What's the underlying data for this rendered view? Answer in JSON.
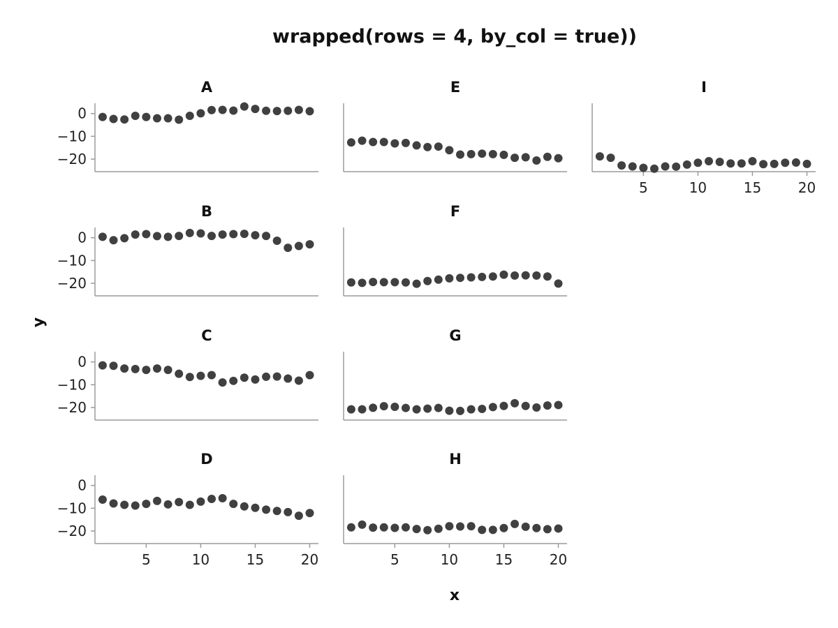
{
  "chart_data": {
    "type": "scatter",
    "title": "wrapped(rows = 4, by_col = true))",
    "xlabel": "x",
    "ylabel": "y",
    "layout": {
      "rows": 4,
      "by_col": true
    },
    "xlim": [
      0.3,
      20.8
    ],
    "ylim": [
      -25.5,
      4.5
    ],
    "xticks": [
      5,
      10,
      15,
      20
    ],
    "yticks": [
      0,
      -10,
      -20
    ],
    "grid": false,
    "marker_color": "#404040",
    "facets": [
      {
        "label": "A",
        "x": [
          1,
          2,
          3,
          4,
          5,
          6,
          7,
          8,
          9,
          10,
          11,
          12,
          13,
          14,
          15,
          16,
          17,
          18,
          19,
          20
        ],
        "y": [
          -1.5,
          -2.4,
          -2.6,
          -1.0,
          -1.5,
          -2.1,
          -2.1,
          -2.7,
          -1.0,
          0.1,
          1.5,
          1.6,
          1.3,
          3.1,
          2.0,
          1.2,
          1.1,
          1.2,
          1.6,
          1.0
        ]
      },
      {
        "label": "B",
        "x": [
          1,
          2,
          3,
          4,
          5,
          6,
          7,
          8,
          9,
          10,
          11,
          12,
          13,
          14,
          15,
          16,
          17,
          18,
          19,
          20
        ],
        "y": [
          0.4,
          -1.1,
          -0.2,
          1.4,
          1.6,
          0.7,
          0.4,
          0.8,
          2.1,
          1.9,
          0.8,
          1.4,
          1.6,
          1.7,
          1.1,
          0.8,
          -1.3,
          -4.4,
          -3.6,
          -2.9
        ]
      },
      {
        "label": "C",
        "x": [
          1,
          2,
          3,
          4,
          5,
          6,
          7,
          8,
          9,
          10,
          11,
          12,
          13,
          14,
          15,
          16,
          17,
          18,
          19,
          20
        ],
        "y": [
          -1.5,
          -1.7,
          -2.9,
          -3.1,
          -3.5,
          -2.9,
          -3.5,
          -5.2,
          -6.6,
          -6.1,
          -5.8,
          -9.0,
          -8.3,
          -6.9,
          -7.7,
          -6.5,
          -6.4,
          -7.3,
          -8.2,
          -5.8
        ]
      },
      {
        "label": "D",
        "x": [
          1,
          2,
          3,
          4,
          5,
          6,
          7,
          8,
          9,
          10,
          11,
          12,
          13,
          14,
          15,
          16,
          17,
          18,
          19,
          20
        ],
        "y": [
          -6.2,
          -7.9,
          -8.5,
          -8.8,
          -8.1,
          -6.8,
          -8.3,
          -7.3,
          -8.5,
          -7.1,
          -5.9,
          -5.6,
          -8.1,
          -9.2,
          -9.8,
          -10.6,
          -11.2,
          -11.7,
          -13.3,
          -12.1
        ]
      },
      {
        "label": "E",
        "x": [
          1,
          2,
          3,
          4,
          5,
          6,
          7,
          8,
          9,
          10,
          11,
          12,
          13,
          14,
          15,
          16,
          17,
          18,
          19,
          20
        ],
        "y": [
          -12.7,
          -11.9,
          -12.5,
          -12.5,
          -13.1,
          -12.9,
          -14.0,
          -14.7,
          -14.5,
          -16.1,
          -18.0,
          -17.8,
          -17.6,
          -17.8,
          -18.1,
          -19.4,
          -19.2,
          -20.6,
          -19.0,
          -19.6
        ]
      },
      {
        "label": "F",
        "x": [
          1,
          2,
          3,
          4,
          5,
          6,
          7,
          8,
          9,
          10,
          11,
          12,
          13,
          14,
          15,
          16,
          17,
          18,
          19,
          20
        ],
        "y": [
          -19.6,
          -19.8,
          -19.4,
          -19.5,
          -19.5,
          -19.6,
          -20.2,
          -19.0,
          -18.4,
          -17.8,
          -17.6,
          -17.4,
          -17.2,
          -17.0,
          -16.2,
          -16.6,
          -16.5,
          -16.6,
          -17.0,
          -20.1
        ]
      },
      {
        "label": "G",
        "x": [
          1,
          2,
          3,
          4,
          5,
          6,
          7,
          8,
          9,
          10,
          11,
          12,
          13,
          14,
          15,
          16,
          17,
          18,
          19,
          20
        ],
        "y": [
          -20.8,
          -20.8,
          -20.1,
          -19.4,
          -19.7,
          -20.2,
          -20.8,
          -20.5,
          -20.2,
          -21.4,
          -21.5,
          -20.8,
          -20.6,
          -19.8,
          -19.3,
          -18.1,
          -19.3,
          -20.0,
          -19.1,
          -18.9
        ]
      },
      {
        "label": "H",
        "x": [
          1,
          2,
          3,
          4,
          5,
          6,
          7,
          8,
          9,
          10,
          11,
          12,
          13,
          14,
          15,
          16,
          17,
          18,
          19,
          20
        ],
        "y": [
          -18.4,
          -17.2,
          -18.5,
          -18.4,
          -18.6,
          -18.4,
          -19.1,
          -19.6,
          -19.0,
          -17.9,
          -18.0,
          -17.9,
          -19.5,
          -19.5,
          -18.7,
          -16.9,
          -18.1,
          -18.7,
          -19.2,
          -18.9
        ]
      },
      {
        "label": "I",
        "x": [
          1,
          2,
          3,
          4,
          5,
          6,
          7,
          8,
          9,
          10,
          11,
          12,
          13,
          14,
          15,
          16,
          17,
          18,
          19,
          20
        ],
        "y": [
          -18.8,
          -19.4,
          -22.8,
          -23.2,
          -23.8,
          -24.2,
          -23.2,
          -23.3,
          -22.4,
          -21.6,
          -20.9,
          -21.2,
          -21.9,
          -21.9,
          -20.9,
          -22.2,
          -22.1,
          -21.6,
          -21.5,
          -22.1
        ]
      }
    ]
  }
}
